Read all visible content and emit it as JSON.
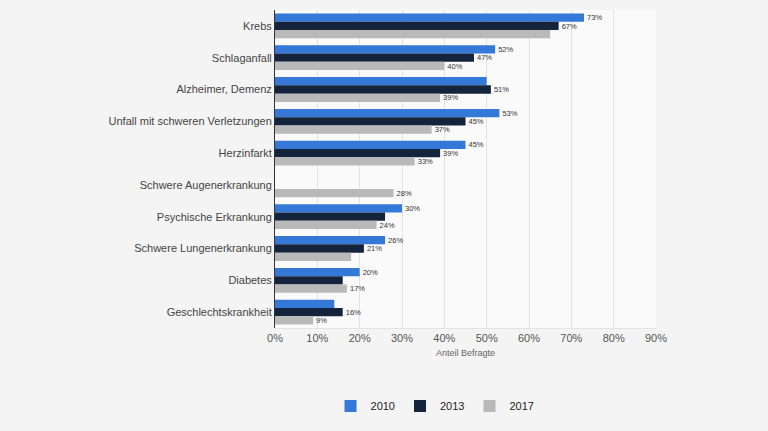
{
  "chart_data": {
    "type": "bar",
    "orientation": "horizontal",
    "x_label": "Anteil Befragte",
    "categories": [
      "Krebs",
      "Schlaganfall",
      "Alzheimer, Demenz",
      "Unfall mit schweren Verletzungen",
      "Herzinfarkt",
      "Schwere Augenerkrankung",
      "Psychische Erkrankung",
      "Schwere Lungenerkrankung",
      "Diabetes",
      "Geschlechtskrankheit"
    ],
    "series": [
      {
        "name": "2010",
        "color": "#3579d8",
        "values": [
          73,
          52,
          50,
          53,
          45,
          null,
          30,
          26,
          20,
          14
        ],
        "value_labels": [
          "73%",
          "52%",
          null,
          "53%",
          "45%",
          null,
          "30%",
          "26%",
          "20%",
          null
        ]
      },
      {
        "name": "2013",
        "color": "#15243d",
        "values": [
          67,
          47,
          51,
          45,
          39,
          null,
          26,
          21,
          16,
          16
        ],
        "value_labels": [
          "67%",
          "47%",
          "51%",
          "45%",
          "39%",
          null,
          null,
          "21%",
          null,
          "16%"
        ]
      },
      {
        "name": "2017",
        "color": "#b9b9b9",
        "values": [
          65,
          40,
          39,
          37,
          33,
          28,
          24,
          18,
          17,
          9
        ],
        "value_labels": [
          null,
          "40%",
          "39%",
          "37%",
          "33%",
          "28%",
          "24%",
          null,
          "17%",
          "9%"
        ]
      }
    ],
    "data_labels": true,
    "xlim": [
      0,
      90
    ],
    "xticks": [
      {
        "value": 0,
        "label": "0%"
      },
      {
        "value": 10,
        "label": "10%"
      },
      {
        "value": 20,
        "label": "20%"
      },
      {
        "value": 30,
        "label": "30%"
      },
      {
        "value": 40,
        "label": "40%"
      },
      {
        "value": 50,
        "label": "50%"
      },
      {
        "value": 60,
        "label": "60%"
      },
      {
        "value": 70,
        "label": "70%"
      },
      {
        "value": 80,
        "label": "80%"
      },
      {
        "value": 90,
        "label": "90%"
      }
    ],
    "grid": true,
    "legend": "bottom"
  }
}
